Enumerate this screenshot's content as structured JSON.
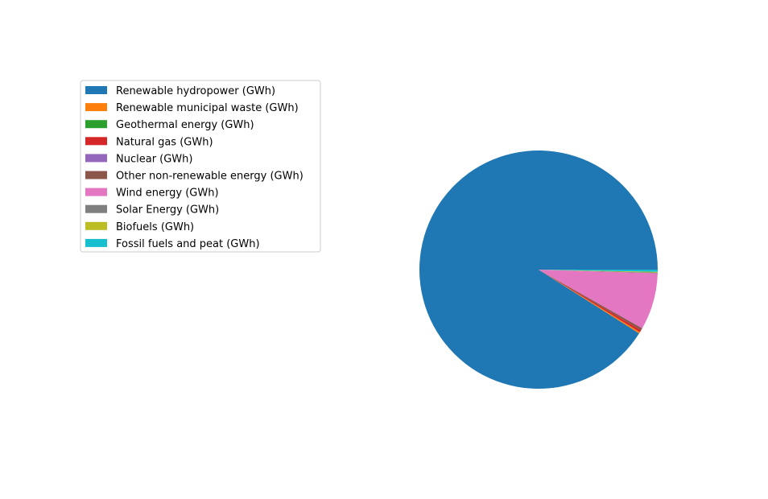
{
  "chart_data": {
    "type": "pie",
    "title": "",
    "series": [
      {
        "name": "Renewable hydropower (GWh)",
        "value": 91.0,
        "color": "#1f77b4"
      },
      {
        "name": "Renewable municipal waste (GWh)",
        "value": 0.2,
        "color": "#ff7f0e"
      },
      {
        "name": "Geothermal energy (GWh)",
        "value": 0.0,
        "color": "#2ca02c"
      },
      {
        "name": "Natural gas (GWh)",
        "value": 0.3,
        "color": "#d62728"
      },
      {
        "name": "Nuclear (GWh)",
        "value": 0.0,
        "color": "#9467bd"
      },
      {
        "name": "Other non-renewable energy (GWh)",
        "value": 0.3,
        "color": "#8c564b"
      },
      {
        "name": "Wind energy (GWh)",
        "value": 7.7,
        "color": "#e377c2"
      },
      {
        "name": "Solar Energy (GWh)",
        "value": 0.1,
        "color": "#7f7f7f"
      },
      {
        "name": "Biofuels (GWh)",
        "value": 0.1,
        "color": "#bcbd22"
      },
      {
        "name": "Fossil fuels and peat (GWh)",
        "value": 0.3,
        "color": "#17becf"
      }
    ],
    "start_angle_deg": 0,
    "direction": "counterclockwise",
    "legend_position": "upper-left"
  }
}
